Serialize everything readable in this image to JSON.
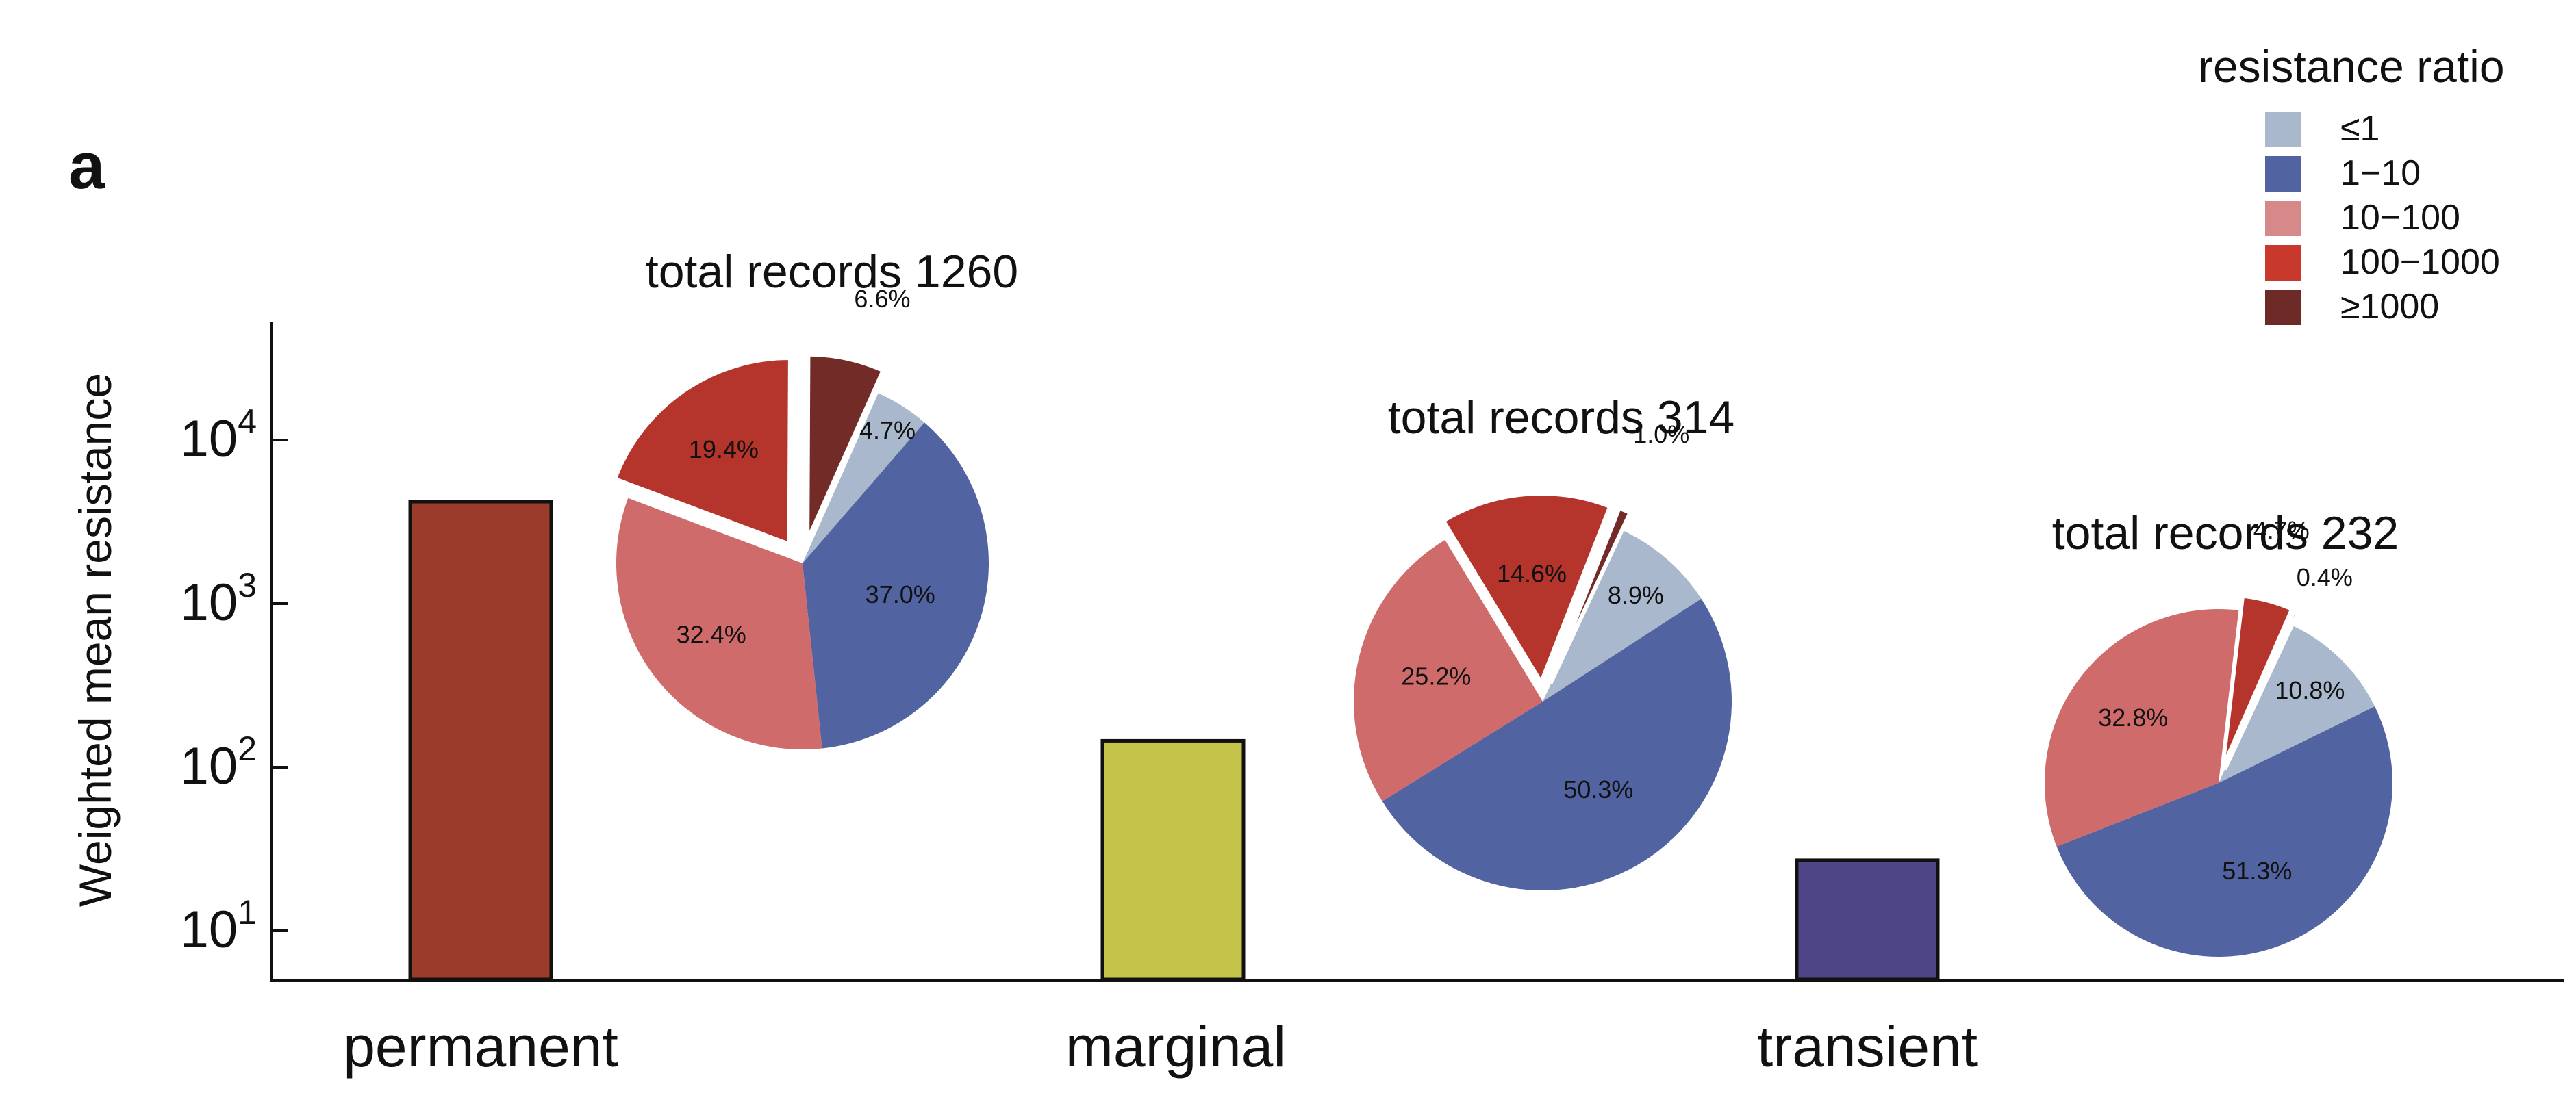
{
  "panel_label": "a",
  "chart_data": [
    {
      "type": "bar",
      "ylabel": "Weighted mean resistance",
      "yscale": "log",
      "ylim": [
        5,
        15000
      ],
      "ytick_labels": [
        {
          "base": "10",
          "exp": "1",
          "value": 10
        },
        {
          "base": "10",
          "exp": "2",
          "value": 100
        },
        {
          "base": "10",
          "exp": "3",
          "value": 1000
        },
        {
          "base": "10",
          "exp": "4",
          "value": 10000
        }
      ],
      "categories": [
        "permanent",
        "marginal",
        "transient"
      ],
      "values": [
        4200,
        145,
        27
      ],
      "colors": [
        "#9b3b2b",
        "#c6c34a",
        "#4e4586"
      ],
      "grid": false
    },
    {
      "type": "pie",
      "title": "total records 1260",
      "labels": [
        "≤1",
        "1−10",
        "10−100",
        "100−1000",
        "≥1000"
      ],
      "values": [
        4.7,
        37.0,
        32.4,
        19.4,
        6.6
      ],
      "value_labels": [
        "4.7%",
        "37.0%",
        "32.4%",
        "19.4%",
        "6.6%"
      ],
      "exploded": [
        false,
        false,
        false,
        true,
        true
      ]
    },
    {
      "type": "pie",
      "title": "total records 314",
      "labels": [
        "≤1",
        "1−10",
        "10−100",
        "100−1000",
        "≥1000"
      ],
      "values": [
        8.9,
        50.3,
        25.2,
        14.6,
        1.0
      ],
      "value_labels": [
        "8.9%",
        "50.3%",
        "25.2%",
        "14.6%",
        "1.0%"
      ],
      "exploded": [
        false,
        false,
        false,
        true,
        true
      ]
    },
    {
      "type": "pie",
      "title": "total records 232",
      "labels": [
        "≤1",
        "1−10",
        "10−100",
        "100−1000",
        "≥1000"
      ],
      "values": [
        10.8,
        51.3,
        32.8,
        4.7,
        0.4
      ],
      "value_labels": [
        "10.8%",
        "51.3%",
        "32.8%",
        "4.7%",
        "0.4%"
      ],
      "exploded": [
        false,
        false,
        false,
        true,
        true
      ]
    }
  ],
  "legend": {
    "title": "resistance ratio",
    "placement": "top-right",
    "items": [
      {
        "label": "≤1",
        "color": "#a9b8cc"
      },
      {
        "label": "1−10",
        "color": "#5163a0"
      },
      {
        "label": "10−100",
        "color": "#d7898a"
      },
      {
        "label": "100−1000",
        "color": "#c9382c"
      },
      {
        "label": "≥1000",
        "color": "#6e2a26"
      }
    ]
  },
  "pie_colors": [
    "#a9b8cc",
    "#5163a0",
    "#cf6b6b",
    "#b5352d",
    "#732b27"
  ]
}
